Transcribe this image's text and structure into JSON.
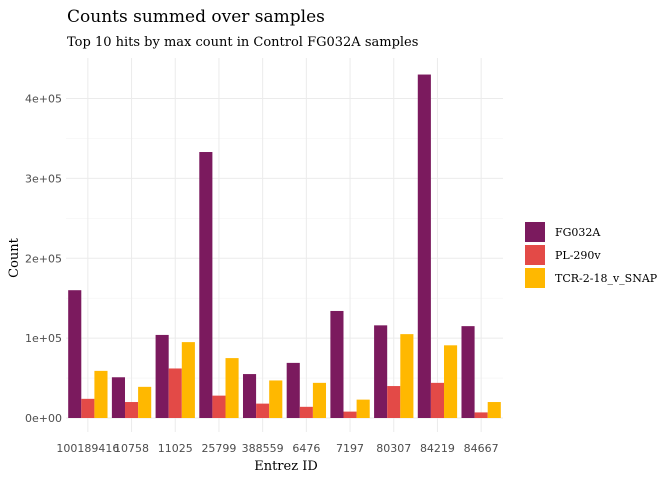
{
  "chart_data": {
    "type": "bar",
    "title": "Counts summed over samples",
    "subtitle": "Top 10 hits by max count in Control FG032A samples",
    "xlabel": "Entrez ID",
    "ylabel": "Count",
    "categories": [
      "100189416",
      "10758",
      "11025",
      "25799",
      "388559",
      "6476",
      "7197",
      "80307",
      "84219",
      "84667"
    ],
    "series": [
      {
        "name": "FG032A",
        "color": "#7b1a5e",
        "values": [
          160000,
          51000,
          104000,
          333000,
          55000,
          69000,
          134000,
          116000,
          430000,
          115000
        ]
      },
      {
        "name": "PL-290v",
        "color": "#e34a47",
        "values": [
          24000,
          20000,
          62000,
          28000,
          18000,
          14000,
          8000,
          40000,
          44000,
          7000
        ]
      },
      {
        "name": "TCR-2-18_v_SNAP",
        "color": "#ffb800",
        "values": [
          59000,
          39000,
          95000,
          75000,
          47000,
          44000,
          23000,
          105000,
          91000,
          20000
        ]
      }
    ],
    "ylim": [
      0,
      450000
    ],
    "yticks": [
      0,
      100000,
      200000,
      300000,
      400000
    ],
    "ytick_labels": [
      "0e+00",
      "1e+05",
      "2e+05",
      "3e+05",
      "4e+05"
    ],
    "grid": true,
    "legend_position": "right"
  }
}
